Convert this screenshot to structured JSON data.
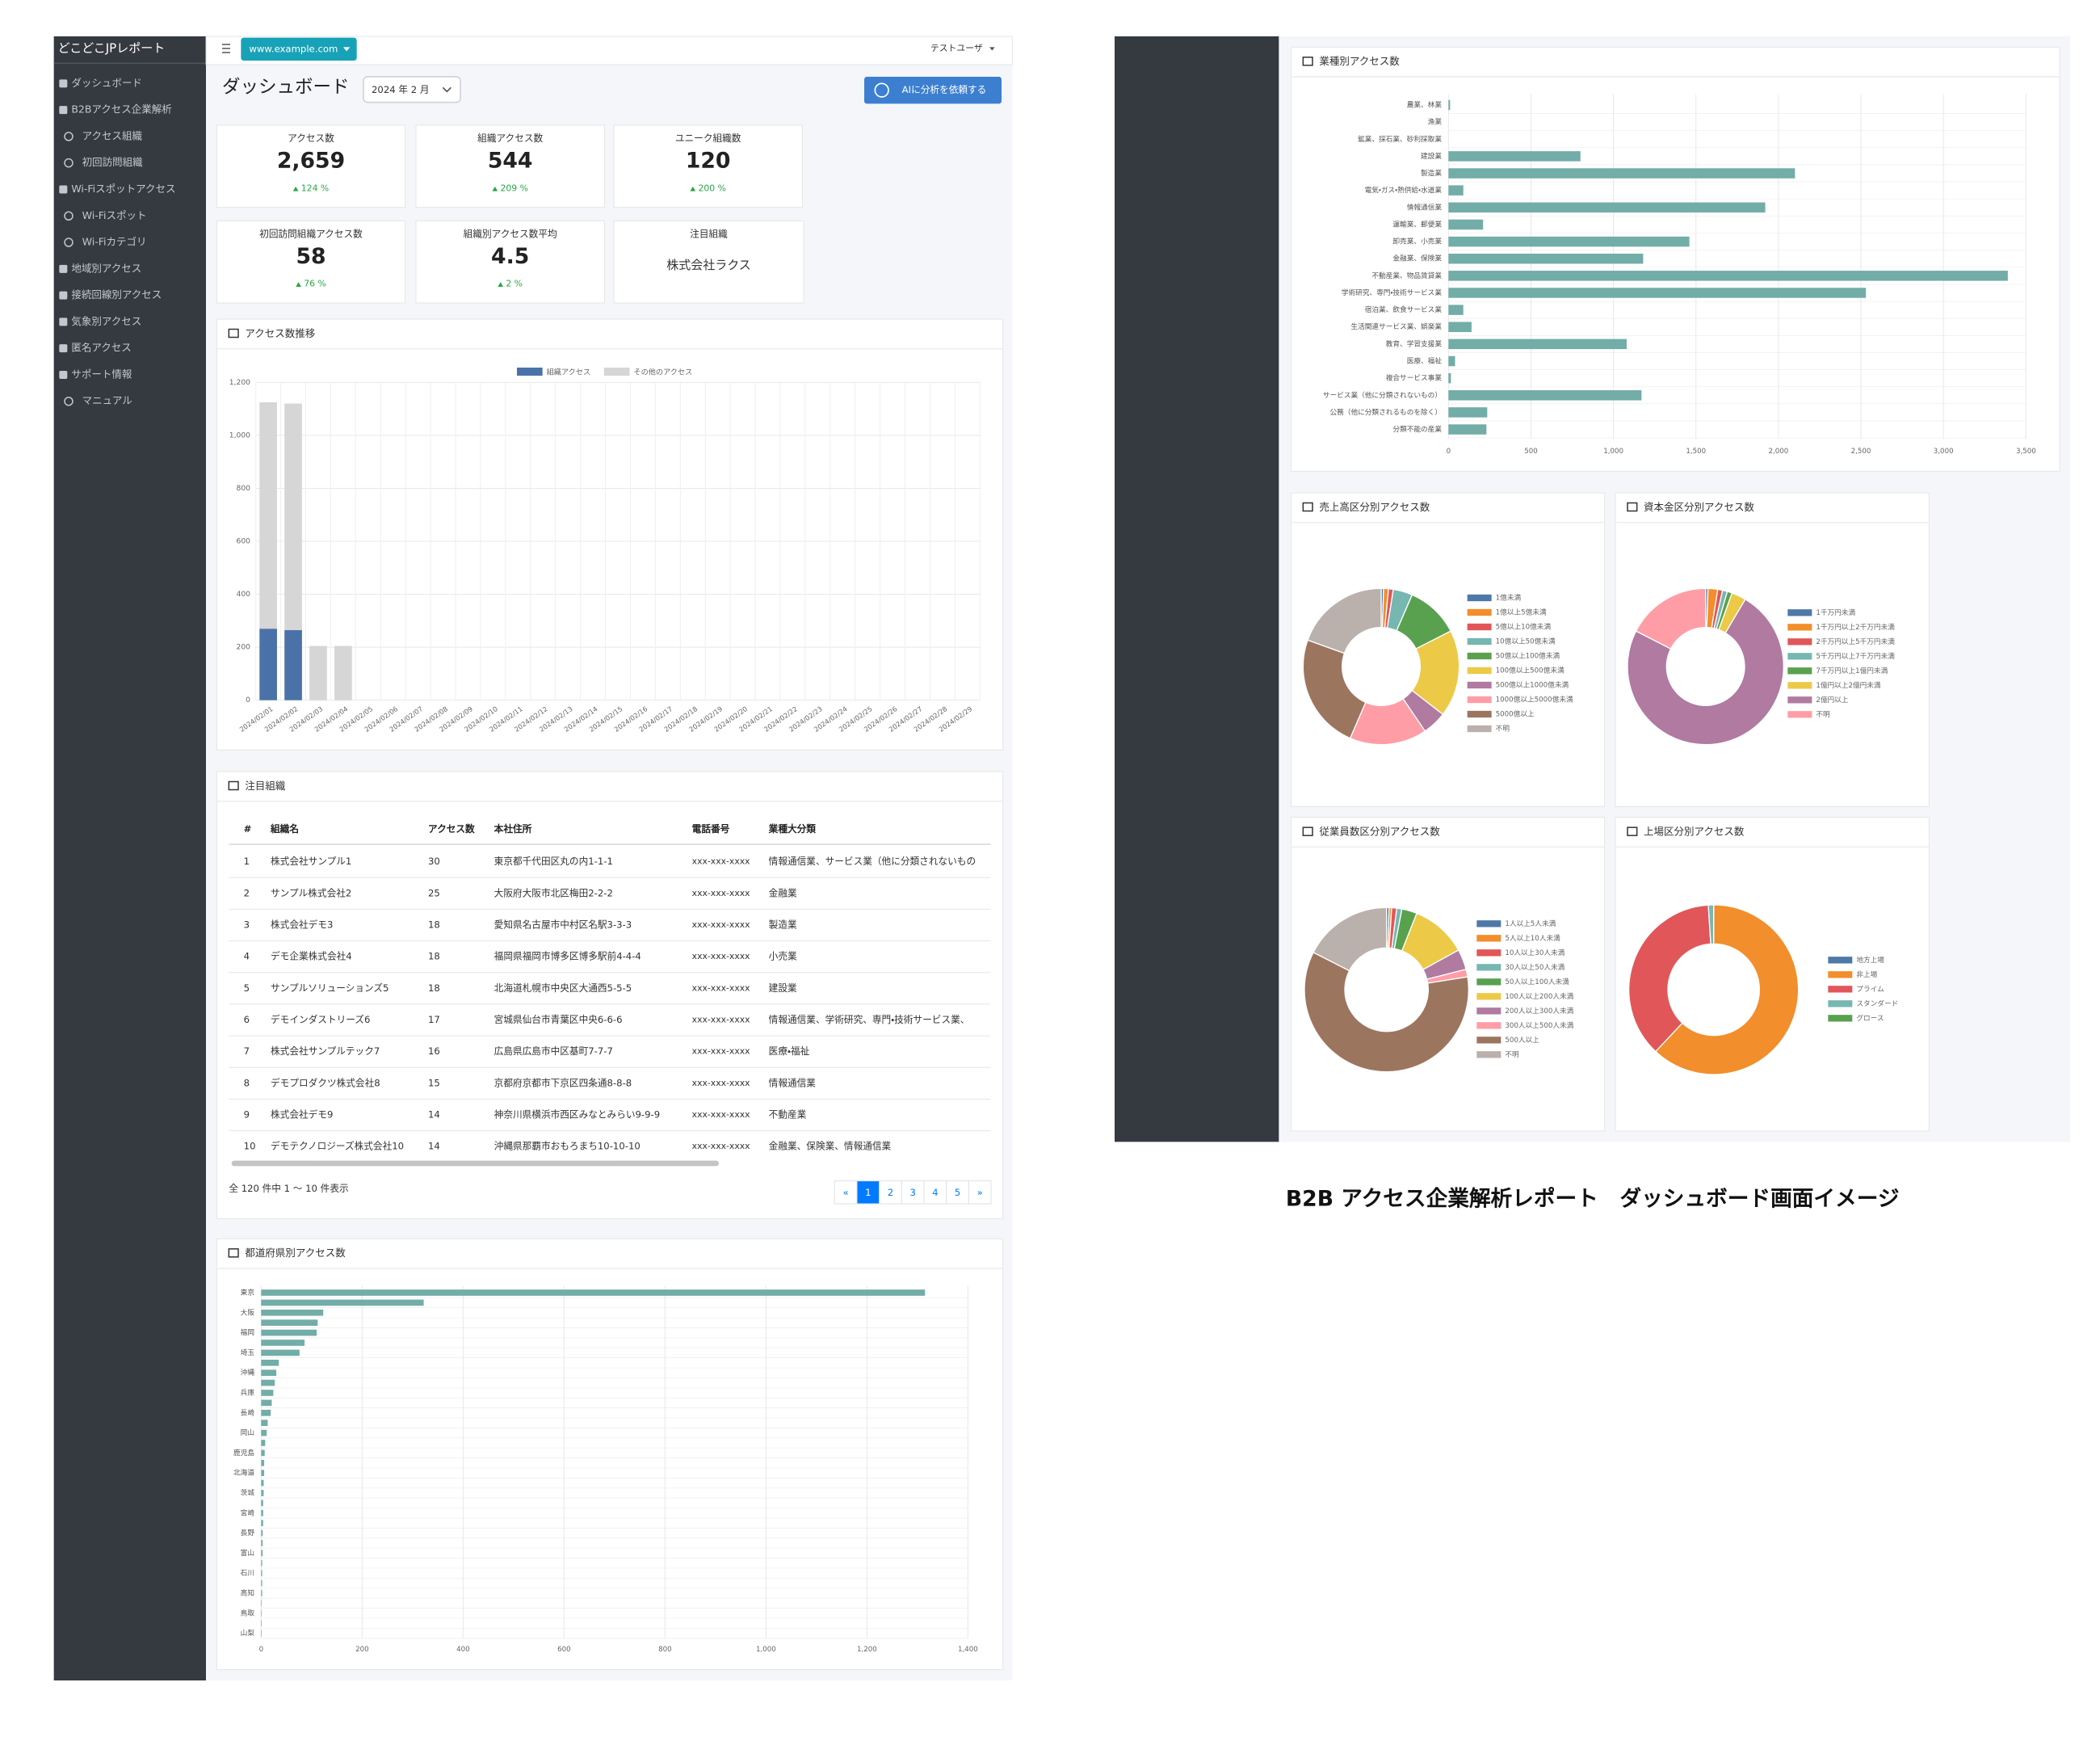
{
  "sidebar": {
    "brand": "どこどこJPレポート",
    "items": [
      "ダッシュボード",
      "B2Bアクセス企業解析",
      "アクセス組織",
      "初回訪問組織",
      "Wi-Fiスポットアクセス",
      "Wi-Fiスポット",
      "Wi-Fiカテゴリ",
      "地域別アクセス",
      "接続回線別アクセス",
      "気象別アクセス",
      "匿名アクセス",
      "サポート情報",
      "マニュアル"
    ]
  },
  "topbar": {
    "site": "www.example.com",
    "user": "テストユーザ"
  },
  "page": {
    "title": "ダッシュボード",
    "month": "2024 年 2 月",
    "ai_button": "AIに分析を依頼する"
  },
  "kpis": [
    {
      "label": "アクセス数",
      "value": "2,659",
      "change": "124 %"
    },
    {
      "label": "組織アクセス数",
      "value": "544",
      "change": "209 %"
    },
    {
      "label": "ユニーク組織数",
      "value": "120",
      "change": "200 %"
    },
    {
      "label": "初回訪問組織アクセス数",
      "value": "58",
      "change": "76 %"
    },
    {
      "label": "組織別アクセス数平均",
      "value": "4.5",
      "change": "2 %"
    }
  ],
  "focus_kpi": {
    "label": "注目組織",
    "value": "株式会社ラクス"
  },
  "access_trend": {
    "title": "アクセス数推移",
    "chart": {
      "type": "bar",
      "stacked": true,
      "categories": [
        "2024/02/01",
        "2024/02/02",
        "2024/02/03",
        "2024/02/04",
        "2024/02/05",
        "2024/02/06",
        "2024/02/07",
        "2024/02/08",
        "2024/02/09",
        "2024/02/10",
        "2024/02/11",
        "2024/02/12",
        "2024/02/13",
        "2024/02/14",
        "2024/02/15",
        "2024/02/16",
        "2024/02/17",
        "2024/02/18",
        "2024/02/19",
        "2024/02/20",
        "2024/02/21",
        "2024/02/22",
        "2024/02/23",
        "2024/02/24",
        "2024/02/25",
        "2024/02/26",
        "2024/02/27",
        "2024/02/28",
        "2024/02/29"
      ],
      "series": [
        {
          "name": "組織アクセス",
          "color": "#4a72a8",
          "values": [
            270,
            265,
            0,
            0,
            0,
            0,
            0,
            0,
            0,
            0,
            0,
            0,
            0,
            0,
            0,
            0,
            0,
            0,
            0,
            0,
            0,
            0,
            0,
            0,
            0,
            0,
            0,
            0,
            0
          ]
        },
        {
          "name": "その他のアクセス",
          "color": "#d6d6d6",
          "values": [
            855,
            855,
            205,
            205,
            0,
            0,
            0,
            0,
            0,
            0,
            0,
            0,
            0,
            0,
            0,
            0,
            0,
            0,
            0,
            0,
            0,
            0,
            0,
            0,
            0,
            0,
            0,
            0,
            0
          ]
        }
      ],
      "ylim": [
        0,
        1200
      ],
      "yticks": [
        0,
        200,
        400,
        600,
        800,
        {
          "value": 1000,
          "label": "1,000"
        },
        {
          "value": 1200,
          "label": "1,200"
        }
      ],
      "grid": true,
      "legend": "top"
    }
  },
  "focus_table": {
    "title": "注目組織",
    "columns": [
      "#",
      "組織名",
      "アクセス数",
      "本社住所",
      "電話番号",
      "業種大分類"
    ],
    "rows": [
      [
        "1",
        "株式会社サンプル1",
        "30",
        "東京都千代田区丸の内1-1-1",
        "xxx-xxx-xxxx",
        "情報通信業、サービス業（他に分類されないもの"
      ],
      [
        "2",
        "サンプル株式会社2",
        "25",
        "大阪府大阪市北区梅田2-2-2",
        "xxx-xxx-xxxx",
        "金融業"
      ],
      [
        "3",
        "株式会社デモ3",
        "18",
        "愛知県名古屋市中村区名駅3-3-3",
        "xxx-xxx-xxxx",
        "製造業"
      ],
      [
        "4",
        "デモ企業株式会社4",
        "18",
        "福岡県福岡市博多区博多駅前4-4-4",
        "xxx-xxx-xxxx",
        "小売業"
      ],
      [
        "5",
        "サンプルソリューションズ5",
        "18",
        "北海道札幌市中央区大通西5-5-5",
        "xxx-xxx-xxxx",
        "建設業"
      ],
      [
        "6",
        "デモインダストリーズ6",
        "17",
        "宮城県仙台市青葉区中央6-6-6",
        "xxx-xxx-xxxx",
        "情報通信業、学術研究、専門・技術サービス業、"
      ],
      [
        "7",
        "株式会社サンプルテック7",
        "16",
        "広島県広島市中区基町7-7-7",
        "xxx-xxx-xxxx",
        "医療・福祉"
      ],
      [
        "8",
        "デモプロダクツ株式会社8",
        "15",
        "京都府京都市下京区四条通8-8-8",
        "xxx-xxx-xxxx",
        "情報通信業"
      ],
      [
        "9",
        "株式会社デモ9",
        "14",
        "神奈川県横浜市西区みなとみらい9-9-9",
        "xxx-xxx-xxxx",
        "不動産業"
      ],
      [
        "10",
        "デモテクノロジーズ株式会社10",
        "14",
        "沖縄県那覇市おもろまち10-10-10",
        "xxx-xxx-xxxx",
        "金融業、保険業、情報通信業"
      ]
    ],
    "summary": "全 120 件中 1 ～ 10 件表示",
    "pages": [
      "«",
      "1",
      "2",
      "3",
      "4",
      "5",
      "»"
    ]
  },
  "prefecture_chart": {
    "title": "都道府県別アクセス数",
    "chart": {
      "type": "bar",
      "orientation": "horizontal",
      "color": "#72ada8",
      "categories": [
        "東京",
        null,
        "大阪",
        null,
        "福岡",
        null,
        "埼玉",
        null,
        "沖縄",
        null,
        "兵庫",
        null,
        "長崎",
        null,
        "岡山",
        null,
        "鹿児島",
        null,
        "北海道",
        null,
        "茨城",
        null,
        "宮崎",
        null,
        "長野",
        null,
        "富山",
        null,
        "石川",
        null,
        "高知",
        null,
        "鳥取",
        null,
        "山梨"
      ],
      "values": [
        1315,
        322,
        123,
        112,
        110,
        86,
        76,
        35,
        30,
        27,
        24,
        21,
        19,
        13,
        11,
        8,
        7,
        6,
        6,
        5,
        5,
        4,
        4,
        4,
        3,
        3,
        3,
        2,
        2,
        2,
        2,
        1,
        1,
        1,
        1
      ],
      "xlim": [
        0,
        1400
      ],
      "xticks": [
        0,
        200,
        400,
        600,
        800,
        {
          "value": 1000,
          "label": "1,000"
        },
        {
          "value": 1200,
          "label": "1,200"
        },
        {
          "value": 1400,
          "label": "1,400"
        }
      ],
      "grid": true
    }
  },
  "industry_chart": {
    "title": "業種別アクセス数",
    "chart": {
      "type": "bar",
      "orientation": "horizontal",
      "color": "#72ada8",
      "categories": [
        "農業、林業",
        "漁業",
        "鉱業、採石業、砂利採取業",
        "建設業",
        "製造業",
        "電気・ガス・熱供給・水道業",
        "情報通信業",
        "運輸業、郵便業",
        "卸売業、小売業",
        "金融業、保険業",
        "不動産業、物品賃貸業",
        "学術研究、専門・技術サービス業",
        "宿泊業、飲食サービス業",
        "生活関連サービス業、娯楽業",
        "教育、学習支援業",
        "医療、福祉",
        "複合サービス事業",
        "サービス業（他に分類されないもの）",
        "公務（他に分類されるものを除く）",
        "分類不能の産業"
      ],
      "values": [
        10,
        0,
        0,
        800,
        2100,
        90,
        1920,
        210,
        1460,
        1180,
        3390,
        2530,
        90,
        140,
        1080,
        40,
        15,
        1170,
        235,
        230
      ],
      "xlim": [
        0,
        3500
      ],
      "xticks": [
        0,
        500,
        {
          "value": 1000,
          "label": "1,000"
        },
        {
          "value": 1500,
          "label": "1,500"
        },
        {
          "value": 2000,
          "label": "2,000"
        },
        {
          "value": 2500,
          "label": "2,500"
        },
        {
          "value": 3000,
          "label": "3,000"
        },
        {
          "value": 3500,
          "label": "3,500"
        }
      ],
      "grid": true
    }
  },
  "donuts": [
    {
      "title": "売上高区分別アクセス数",
      "chart": {
        "type": "doughnut",
        "categories": [
          "1億未満",
          "1億以上5億未満",
          "5億以上10億未満",
          "10億以上50億未満",
          "50億以上100億未満",
          "100億以上500億未満",
          "500億以上1000億未満",
          "1000億以上5000億未満",
          "5000億以上",
          "不明"
        ],
        "values": [
          0.5,
          1,
          1,
          4,
          11,
          18,
          5,
          16,
          24,
          19.5
        ],
        "colors": [
          "#4e79a7",
          "#f28e2b",
          "#e15759",
          "#76b7b2",
          "#59a14f",
          "#edc948",
          "#b07aa1",
          "#ff9da7",
          "#9c755f",
          "#bab0ac"
        ]
      }
    },
    {
      "title": "資本金区分別アクセス数",
      "chart": {
        "type": "doughnut",
        "categories": [
          "1千万円未満",
          "1千万円以上2千万円未満",
          "2千万円以上5千万円未満",
          "5千万円以上7千万円未満",
          "7千万円以上1億円未満",
          "1億円以上2億円未満",
          "2億円以上",
          "不明"
        ],
        "values": [
          0.5,
          2,
          1,
          1,
          1,
          3,
          74,
          17.5
        ],
        "colors": [
          "#4e79a7",
          "#f28e2b",
          "#e15759",
          "#76b7b2",
          "#59a14f",
          "#edc948",
          "#b07aa1",
          "#ff9da7"
        ]
      }
    },
    {
      "title": "従業員数区分別アクセス数",
      "chart": {
        "type": "doughnut",
        "categories": [
          "1人以上5人未満",
          "5人以上10人未満",
          "10人以上30人未満",
          "30人以上50人未満",
          "50人以上100人未満",
          "100人以上200人未満",
          "200人以上300人未満",
          "300人以上500人未満",
          "500人以上",
          "不明"
        ],
        "values": [
          0.5,
          0.5,
          1,
          1,
          3,
          11,
          4,
          1.5,
          60,
          17.5
        ],
        "colors": [
          "#4e79a7",
          "#f28e2b",
          "#e15759",
          "#76b7b2",
          "#59a14f",
          "#edc948",
          "#b07aa1",
          "#ff9da7",
          "#9c755f",
          "#bab0ac"
        ]
      }
    },
    {
      "title": "上場区分別アクセス数",
      "chart": {
        "type": "doughnut",
        "categories": [
          "地方上場",
          "非上場",
          "プライム",
          "スタンダード",
          "グロース"
        ],
        "values": [
          0,
          62,
          37,
          1,
          0
        ],
        "colors": [
          "#4e79a7",
          "#f28e2b",
          "#e15759",
          "#76b7b2",
          "#59a14f"
        ]
      }
    }
  ],
  "caption": "B2B アクセス企業解析レポート　ダッシュボード画面イメージ"
}
